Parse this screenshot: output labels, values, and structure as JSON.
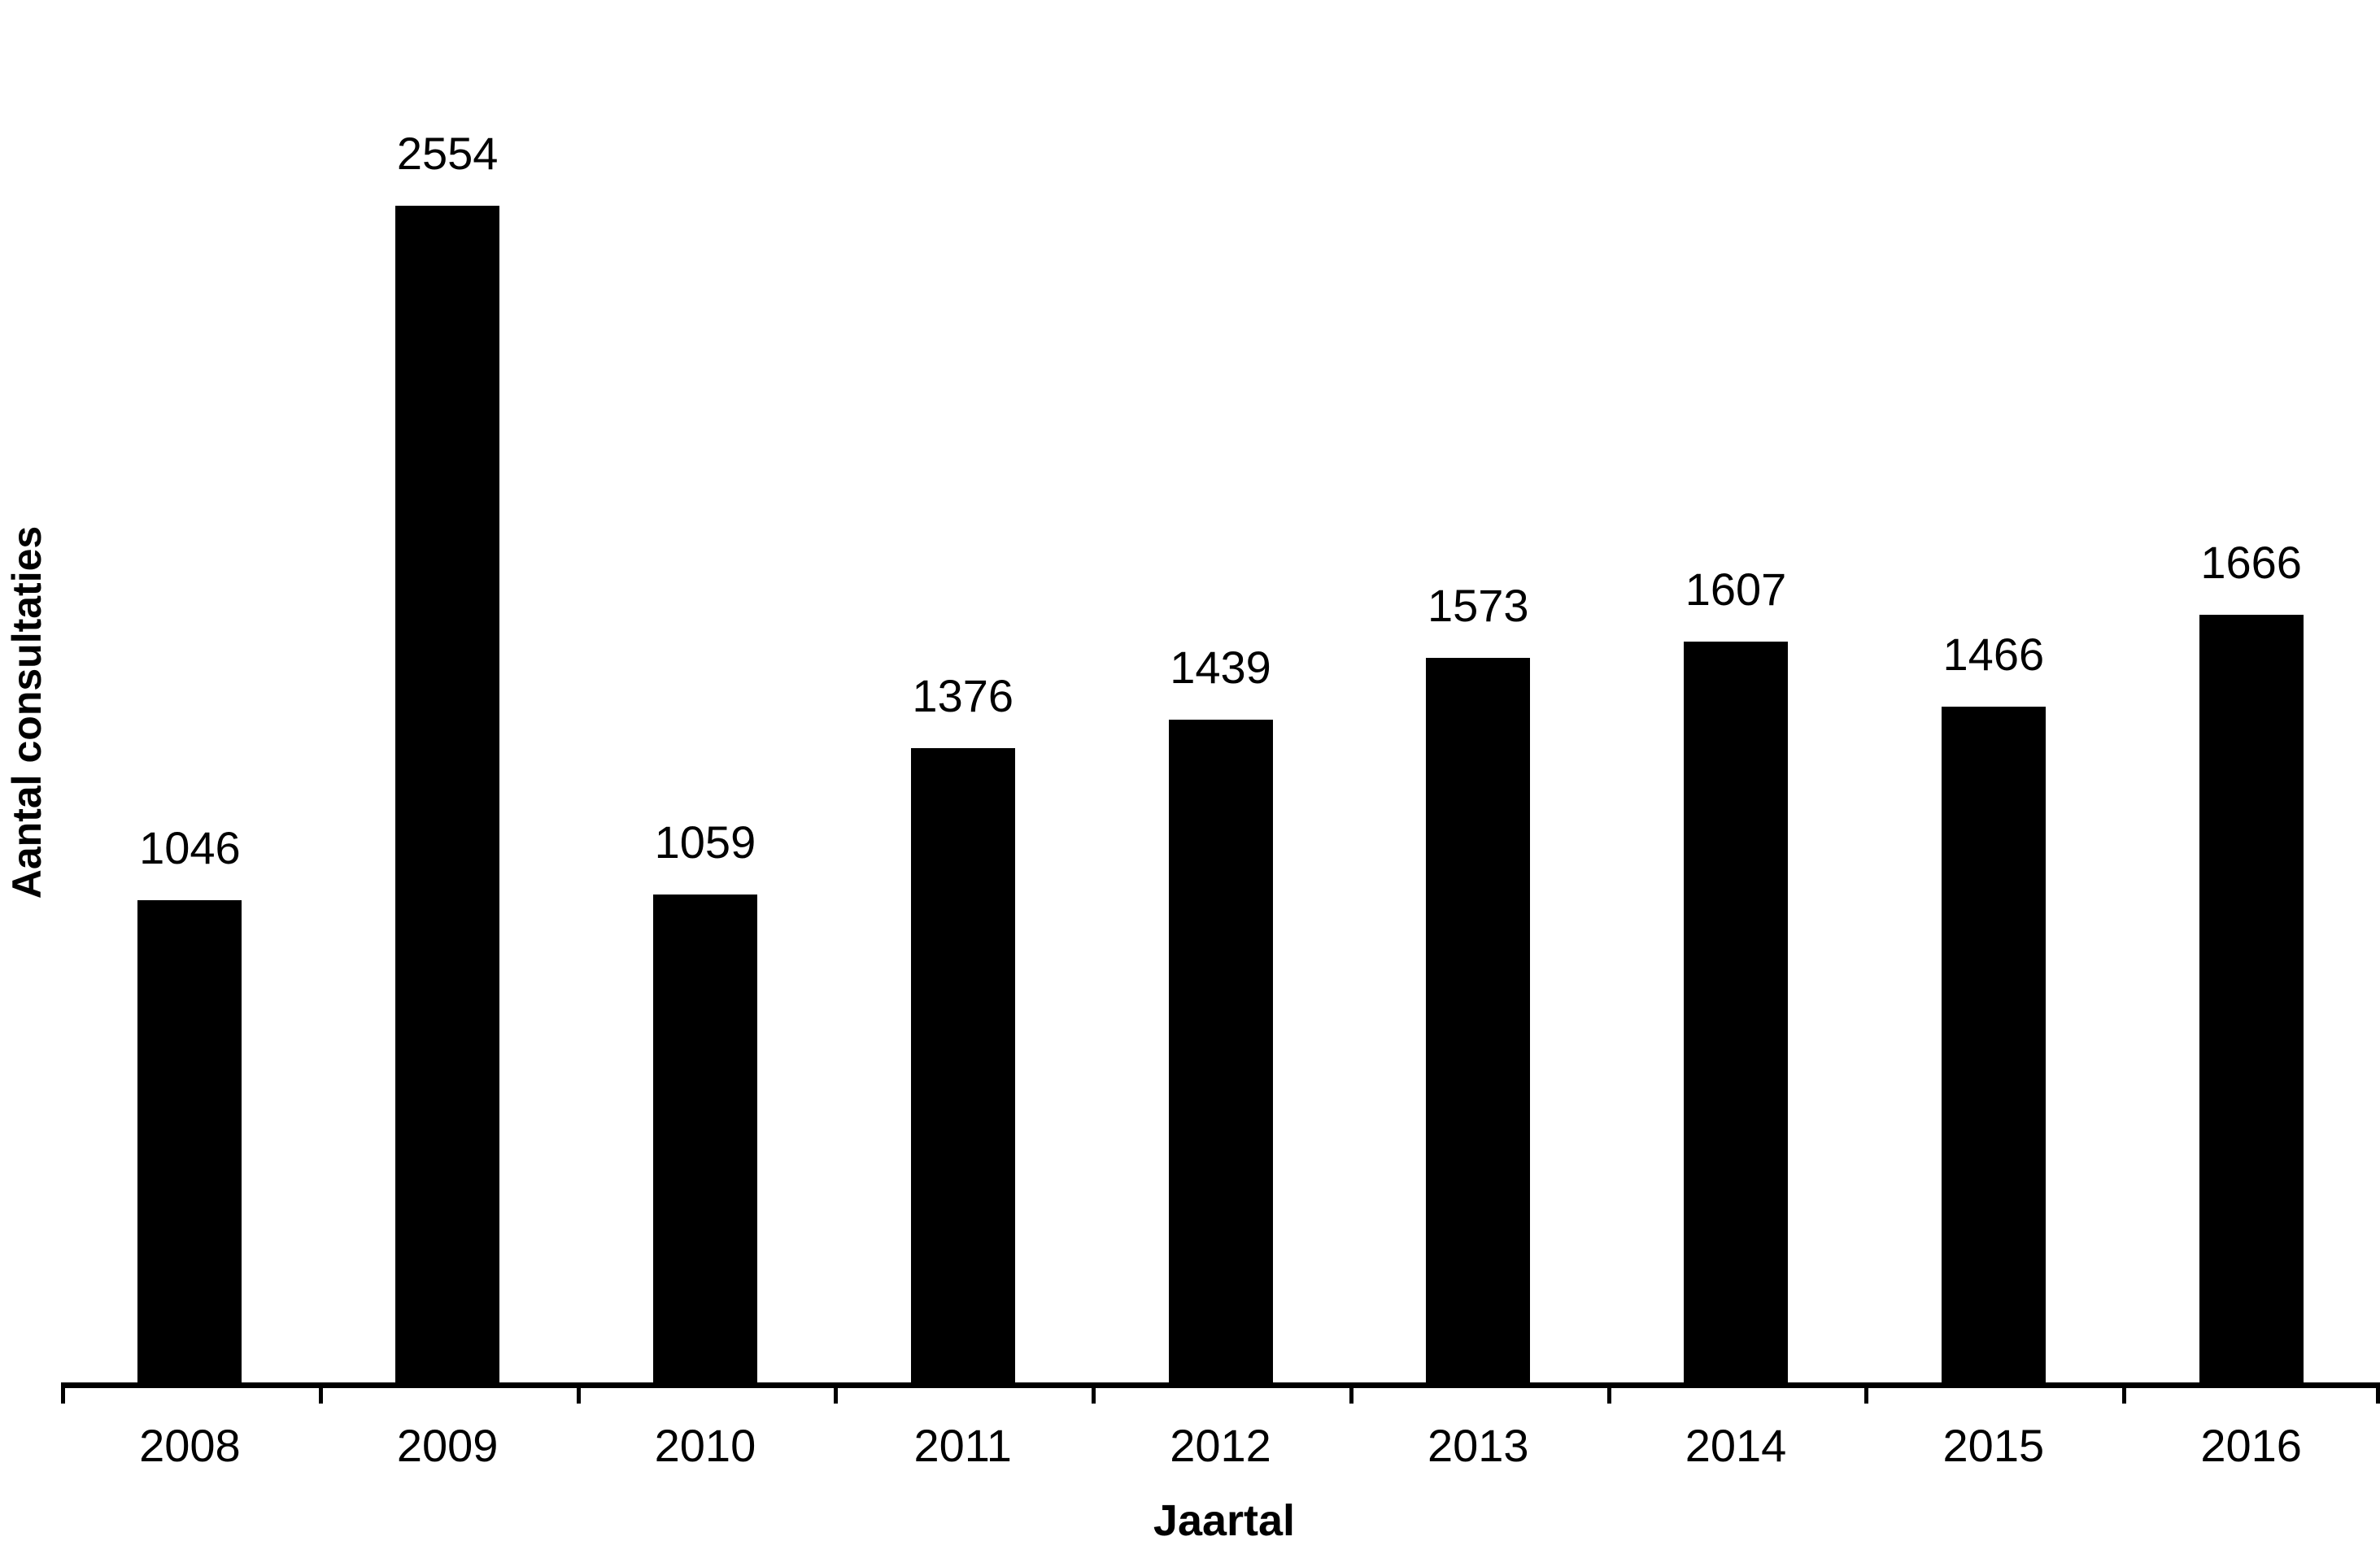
{
  "chart_data": {
    "type": "bar",
    "title": "",
    "categories": [
      "2008",
      "2009",
      "2010",
      "2011",
      "2012",
      "2013",
      "2014",
      "2015",
      "2016"
    ],
    "values": [
      1046,
      2554,
      1059,
      1376,
      1439,
      1573,
      1607,
      1466,
      1666
    ],
    "xlabel": "Jaartal",
    "ylabel": "Aantal consultaties",
    "ylim": [
      0,
      3000
    ],
    "bar_color": "#000000",
    "axis_color": "#000000",
    "text_color": "#000000",
    "background_color": "#ffffff",
    "grid": false,
    "legend": false,
    "data_labels": true,
    "y_tick_labels_visible": false
  }
}
